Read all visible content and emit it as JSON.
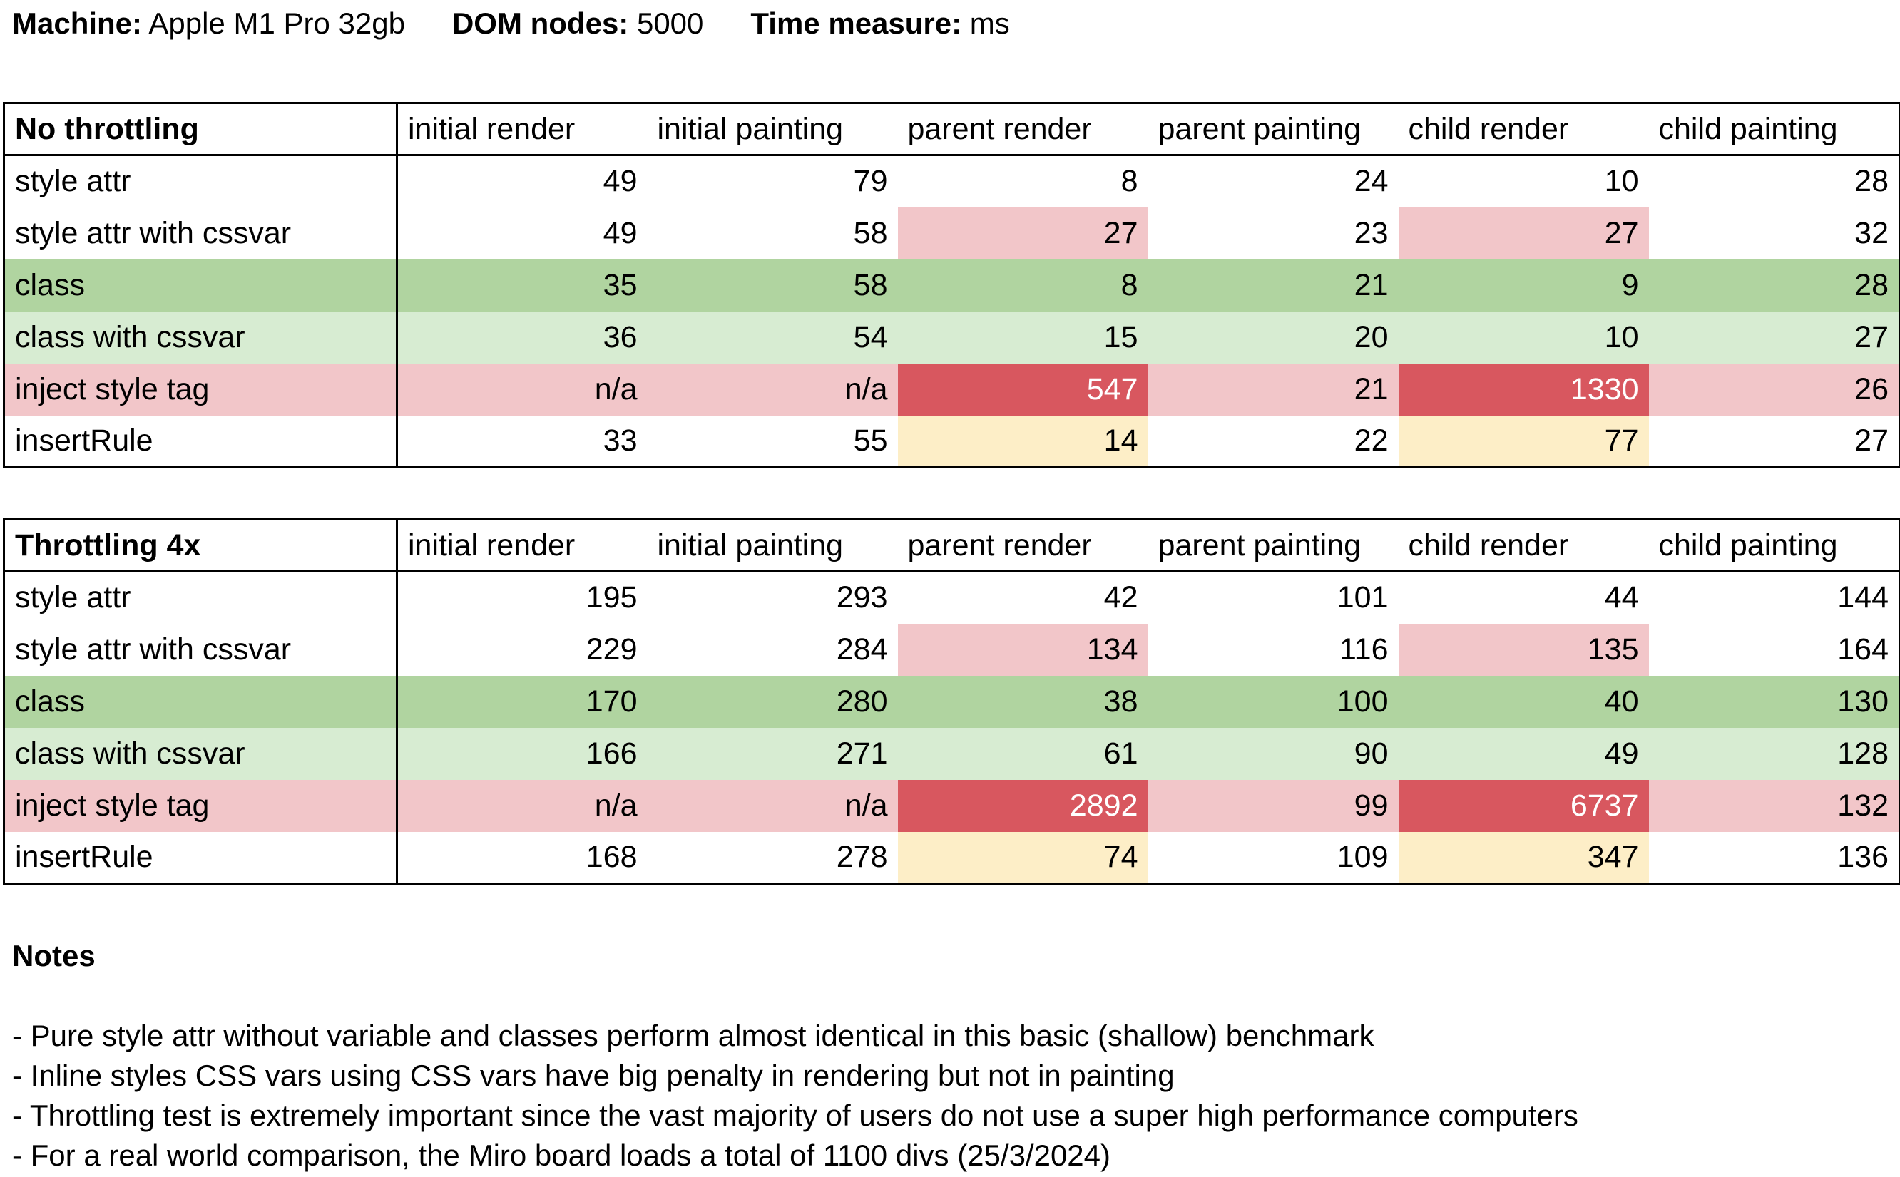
{
  "header": {
    "machine_label": "Machine:",
    "machine_value": "Apple M1 Pro 32gb",
    "dom_label": "DOM nodes:",
    "dom_value": "5000",
    "time_label": "Time measure:",
    "time_value": "ms"
  },
  "colors": {
    "green_strong": "#b0d4a0",
    "green_light": "#d7ecd2",
    "red_light": "#f2c6c9",
    "red_strong": "#d8575f",
    "yellow_light": "#fdeec7",
    "white": "#ffffff"
  },
  "columns": [
    "initial render",
    "initial painting",
    "parent render",
    "parent painting",
    "child render",
    "child painting"
  ],
  "tables": [
    {
      "title": "No throttling",
      "rows": [
        {
          "label": "style attr",
          "values": [
            "49",
            "79",
            "8",
            "24",
            "10",
            "28"
          ],
          "row_style": "white",
          "cell_styles": [
            "",
            "",
            "",
            "",
            "",
            ""
          ]
        },
        {
          "label": "style attr with cssvar",
          "values": [
            "49",
            "58",
            "27",
            "23",
            "27",
            "32"
          ],
          "row_style": "white",
          "cell_styles": [
            "",
            "",
            "red_light",
            "",
            "red_light",
            ""
          ]
        },
        {
          "label": "class",
          "values": [
            "35",
            "58",
            "8",
            "21",
            "9",
            "28"
          ],
          "row_style": "green_strong",
          "cell_styles": [
            "",
            "",
            "",
            "",
            "",
            ""
          ]
        },
        {
          "label": "class with cssvar",
          "values": [
            "36",
            "54",
            "15",
            "20",
            "10",
            "27"
          ],
          "row_style": "green_light",
          "cell_styles": [
            "",
            "",
            "",
            "",
            "",
            ""
          ]
        },
        {
          "label": "inject style tag",
          "values": [
            "n/a",
            "n/a",
            "547",
            "21",
            "1330",
            "26"
          ],
          "row_style": "red_light",
          "cell_styles": [
            "",
            "",
            "red_strong",
            "",
            "red_strong",
            ""
          ]
        },
        {
          "label": "insertRule",
          "values": [
            "33",
            "55",
            "14",
            "22",
            "77",
            "27"
          ],
          "row_style": "white",
          "cell_styles": [
            "",
            "",
            "yellow_light",
            "",
            "yellow_light",
            ""
          ]
        }
      ]
    },
    {
      "title": "Throttling 4x",
      "rows": [
        {
          "label": "style attr",
          "values": [
            "195",
            "293",
            "42",
            "101",
            "44",
            "144"
          ],
          "row_style": "white",
          "cell_styles": [
            "",
            "",
            "",
            "",
            "",
            ""
          ]
        },
        {
          "label": "style attr with cssvar",
          "values": [
            "229",
            "284",
            "134",
            "116",
            "135",
            "164"
          ],
          "row_style": "white",
          "cell_styles": [
            "",
            "",
            "red_light",
            "",
            "red_light",
            ""
          ]
        },
        {
          "label": "class",
          "values": [
            "170",
            "280",
            "38",
            "100",
            "40",
            "130"
          ],
          "row_style": "green_strong",
          "cell_styles": [
            "",
            "",
            "",
            "",
            "",
            ""
          ]
        },
        {
          "label": "class with cssvar",
          "values": [
            "166",
            "271",
            "61",
            "90",
            "49",
            "128"
          ],
          "row_style": "green_light",
          "cell_styles": [
            "",
            "",
            "",
            "",
            "",
            ""
          ]
        },
        {
          "label": "inject style tag",
          "values": [
            "n/a",
            "n/a",
            "2892",
            "99",
            "6737",
            "132"
          ],
          "row_style": "red_light",
          "cell_styles": [
            "",
            "",
            "red_strong",
            "",
            "red_strong",
            ""
          ]
        },
        {
          "label": "insertRule",
          "values": [
            "168",
            "278",
            "74",
            "109",
            "347",
            "136"
          ],
          "row_style": "white",
          "cell_styles": [
            "",
            "",
            "yellow_light",
            "",
            "yellow_light",
            ""
          ]
        }
      ]
    }
  ],
  "notes": {
    "title": "Notes",
    "items": [
      "- Pure style attr without variable and classes perform almost identical in this basic (shallow) benchmark",
      "- Inline styles CSS vars using CSS vars have big penalty in rendering but not in painting",
      "- Throttling test is extremely important since the vast majority of users do not use a super high performance computers",
      "- For a real world comparison, the Miro board loads a total of 1100 divs (25/3/2024)"
    ]
  }
}
